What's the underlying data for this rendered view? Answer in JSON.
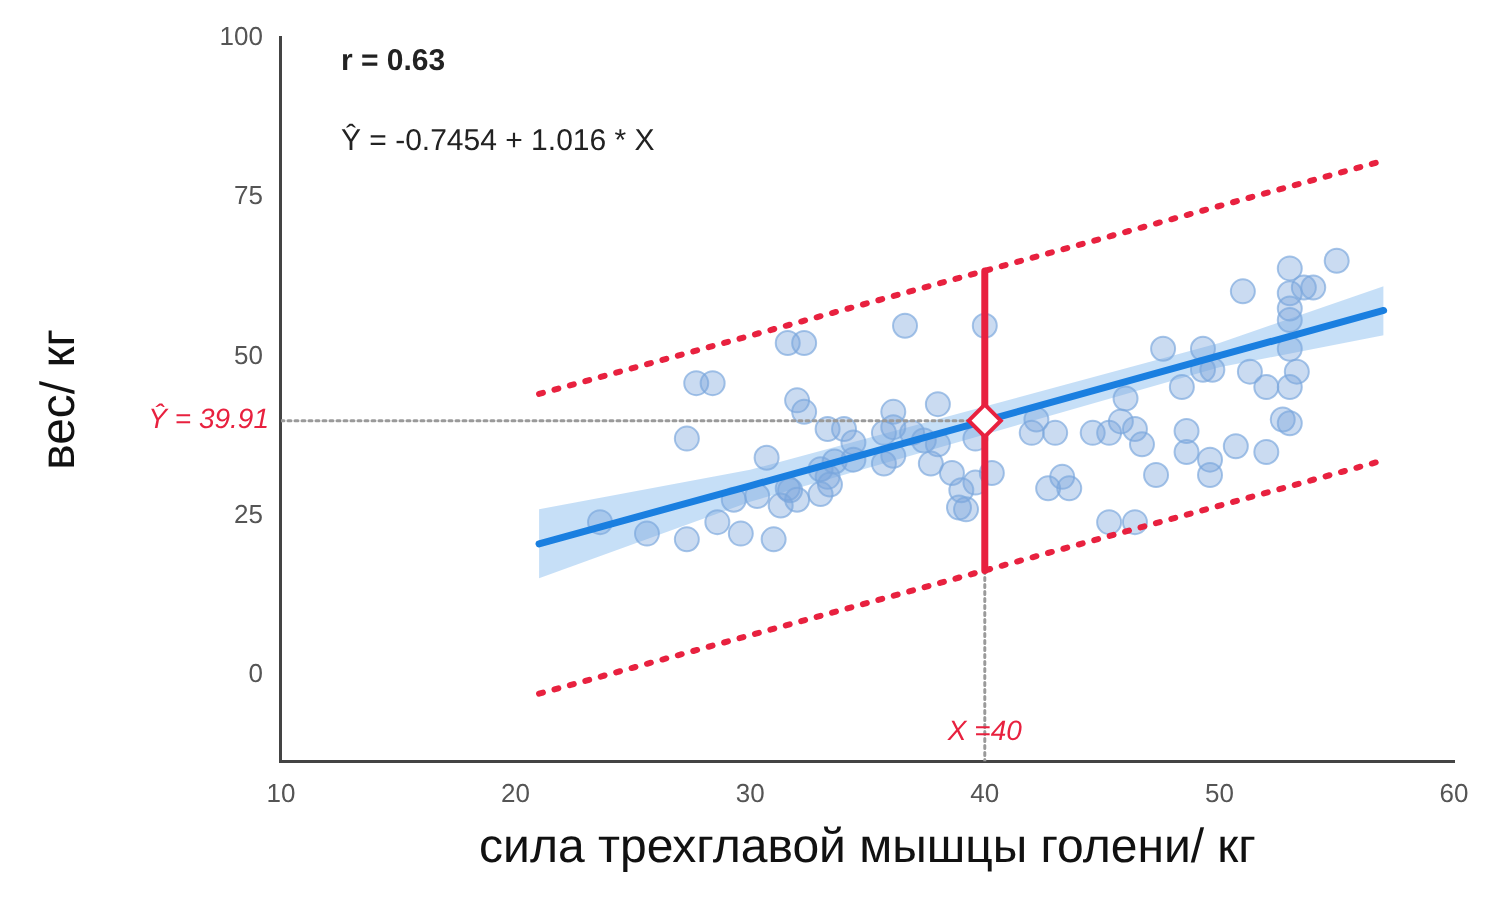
{
  "chart_data": {
    "type": "scatter",
    "xlabel": "сила трехглавой мышцы голени/ кг",
    "ylabel": "вес/ кг",
    "xlim": [
      10,
      60
    ],
    "xticks": [
      10,
      20,
      30,
      40,
      50,
      60
    ],
    "ylim": [
      -13.5,
      100
    ],
    "yticks": [
      0,
      25,
      50,
      75,
      100
    ],
    "grid": false,
    "legend": false,
    "annotations": [
      "r = 0.63",
      "Ŷ = -0.7454 + 1.016 * X",
      {
        "text": "Ŷ = 39.91",
        "x": 10,
        "y": 39.91
      },
      {
        "text": "X =40",
        "x": 40,
        "y": -9
      }
    ],
    "series": [
      {
        "color": "#7aa6dc",
        "marker": "circle",
        "x": [
          31.6,
          32.3,
          27.7,
          28.4,
          32.0,
          32.3,
          33.3,
          34.0,
          27.3,
          30.7,
          33.0,
          33.3,
          33.4,
          31.6,
          31.7,
          29.3,
          30.3,
          31.3,
          32.0,
          33.0,
          23.6,
          25.6,
          28.6,
          27.3,
          29.6,
          31.0,
          36.6,
          40.0,
          36.1,
          38.0,
          34.4,
          35.7,
          36.1,
          36.9,
          37.4,
          38.0,
          39.6,
          33.6,
          34.4,
          35.7,
          36.1,
          37.7,
          38.6,
          40.3,
          39.6,
          39.0,
          38.9,
          39.2,
          42.2,
          42.0,
          43.0,
          44.6,
          45.3,
          45.8,
          46.0,
          46.4,
          46.7,
          43.3,
          42.7,
          43.6,
          45.3,
          46.4,
          53.0,
          55.0,
          51.0,
          53.0,
          53.6,
          54.0,
          53.0,
          53.0,
          47.6,
          49.3,
          53.0,
          49.3,
          49.7,
          51.3,
          53.3,
          48.4,
          52.0,
          53.0,
          48.6,
          48.6,
          50.7,
          52.0,
          52.7,
          53.0,
          47.3,
          49.6,
          49.6
        ],
        "values": [
          52.1,
          52.1,
          45.8,
          45.8,
          43.1,
          41.3,
          38.6,
          38.6,
          37.1,
          34.1,
          32.3,
          31.1,
          29.9,
          29.3,
          29.0,
          27.5,
          28.1,
          26.6,
          27.5,
          28.4,
          24.0,
          22.2,
          24.0,
          21.3,
          22.2,
          21.3,
          54.8,
          54.8,
          41.3,
          42.5,
          36.5,
          38.0,
          38.9,
          38.0,
          36.8,
          36.2,
          37.1,
          33.5,
          33.8,
          33.2,
          34.4,
          33.2,
          31.7,
          31.7,
          30.2,
          29.0,
          26.3,
          26.0,
          40.1,
          38.0,
          38.0,
          38.0,
          38.0,
          39.8,
          43.4,
          38.6,
          36.2,
          31.1,
          29.3,
          29.3,
          24.0,
          24.0,
          63.8,
          65.0,
          60.2,
          59.9,
          60.8,
          60.8,
          57.5,
          55.7,
          51.2,
          51.2,
          51.2,
          47.9,
          47.9,
          47.6,
          47.6,
          45.2,
          45.2,
          45.2,
          38.3,
          35.0,
          35.9,
          35.0,
          40.1,
          39.5,
          31.4,
          33.8,
          31.4
        ]
      },
      {
        "type": "line",
        "color": "#1a7fe0",
        "line_style": "solid",
        "marker": "none",
        "x": [
          21,
          30,
          50,
          57
        ],
        "values": [
          20.6,
          29.7,
          50.1,
          57.2
        ],
        "lower": [
          15.2,
          27.2,
          48.3,
          53.3
        ],
        "upper": [
          26.0,
          32.2,
          52.1,
          61.0
        ]
      },
      {
        "type": "line",
        "color": "#e8213f",
        "line_style": "dotted",
        "marker": "none",
        "x": [
          21,
          57
        ],
        "values": [
          44.1,
          80.7
        ]
      },
      {
        "type": "line",
        "color": "#e8213f",
        "line_style": "dotted",
        "marker": "none",
        "x": [
          21,
          57
        ],
        "values": [
          -2.9,
          33.7
        ]
      },
      {
        "type": "line",
        "color": "#e8213f",
        "line_style": "solid",
        "marker": "none",
        "x": [
          40,
          40
        ],
        "values": [
          16.4,
          63.4
        ]
      },
      {
        "type": "line",
        "color": "#9a9a9a",
        "line_style": "dotted",
        "marker": "none",
        "x": [
          10,
          40
        ],
        "values": [
          39.91,
          39.91
        ]
      },
      {
        "type": "line",
        "color": "#9a9a9a",
        "line_style": "dotted",
        "marker": "none",
        "x": [
          40,
          40
        ],
        "values": [
          16.4,
          -13.5
        ]
      },
      {
        "type": "scatter",
        "color": "#e8213f",
        "marker": "diamond",
        "x": [
          40
        ],
        "values": [
          39.91
        ]
      }
    ]
  }
}
